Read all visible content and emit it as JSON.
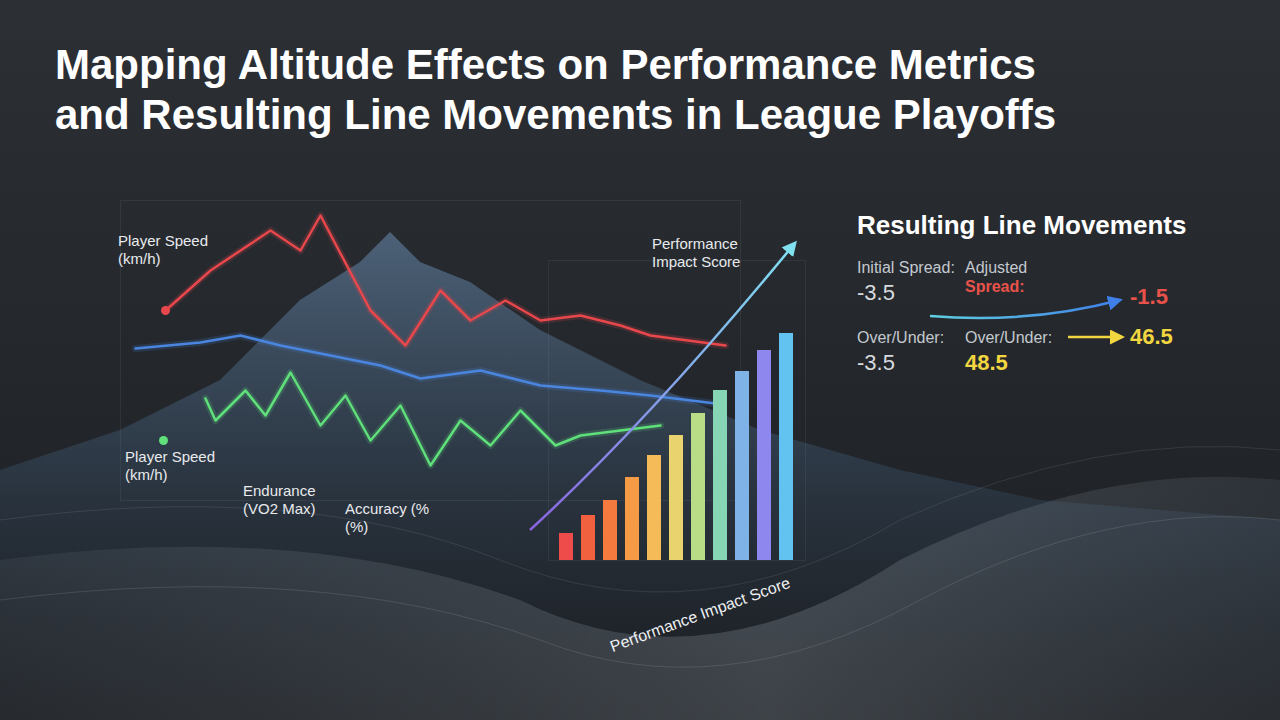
{
  "title": "Mapping Altitude Effects on Performance Metrics and Resulting Line Movements in League Playoffs",
  "chart_data": [
    {
      "type": "line",
      "xlim": [
        120,
        740
      ],
      "ylim": [
        0,
        300
      ],
      "xticks": [],
      "yticks": [],
      "tick_labels": false,
      "series": [
        {
          "name": "Player Speed (km/h)",
          "color": "#e8474c",
          "marker": "circle",
          "x": [
            165,
            210,
            270,
            300,
            320,
            370,
            405,
            440,
            470,
            505,
            540,
            580,
            620,
            650,
            725
          ],
          "values": [
            190,
            230,
            270,
            250,
            285,
            190,
            155,
            210,
            180,
            200,
            180,
            185,
            175,
            165,
            155
          ]
        },
        {
          "color": "#4a86e0",
          "x": [
            135,
            200,
            240,
            280,
            330,
            380,
            420,
            480,
            540,
            600,
            650,
            715
          ],
          "values": [
            152,
            158,
            165,
            155,
            145,
            135,
            122,
            130,
            115,
            110,
            105,
            97
          ]
        },
        {
          "name": "Player Speed (km/h)",
          "color": "#5fe07a",
          "marker": "circle",
          "x": [
            163,
            185,
            205,
            215,
            245,
            265,
            290,
            320,
            345,
            370,
            400,
            430,
            460,
            490,
            520,
            555,
            580,
            620,
            660
          ],
          "values": [
            60,
            null,
            102,
            80,
            110,
            85,
            128,
            75,
            105,
            60,
            95,
            35,
            80,
            55,
            90,
            55,
            65,
            70,
            75
          ]
        }
      ],
      "annotations": [
        "Endurance (VO2 Max)",
        "Accuracy (% (%)"
      ]
    },
    {
      "type": "bar",
      "title": "Performance Impact Score",
      "xlabel": "Performance Impact Score",
      "categories": [
        null,
        null,
        null,
        null,
        null,
        null,
        null,
        null,
        null,
        null,
        null
      ],
      "values": [
        27,
        45,
        60,
        83,
        105,
        125,
        147,
        170,
        189,
        210,
        227
      ],
      "colors": [
        "#ee4b4b",
        "#f1603f",
        "#f47a3d",
        "#f59a45",
        "#f4bb58",
        "#e8d36e",
        "#b9dc86",
        "#86d6b6",
        "#7fb3e8",
        "#8e87ee",
        "#62c3f0"
      ],
      "ylim": [
        0,
        300
      ],
      "yticks": [],
      "tick_labels": false
    }
  ],
  "line_movements": {
    "title": "Resulting Line Movements",
    "spread": {
      "initial_label": "Initial Spread:",
      "initial": -3.5,
      "adjusted_label": "Adjusted Spread:",
      "adjusted": -1.5
    },
    "over_under": {
      "initial_label": "Over/Under:",
      "initial": -3.5,
      "adjusted_label": "Over/Under:",
      "adjusted_from": 48.5,
      "adjusted": 46.5
    }
  }
}
